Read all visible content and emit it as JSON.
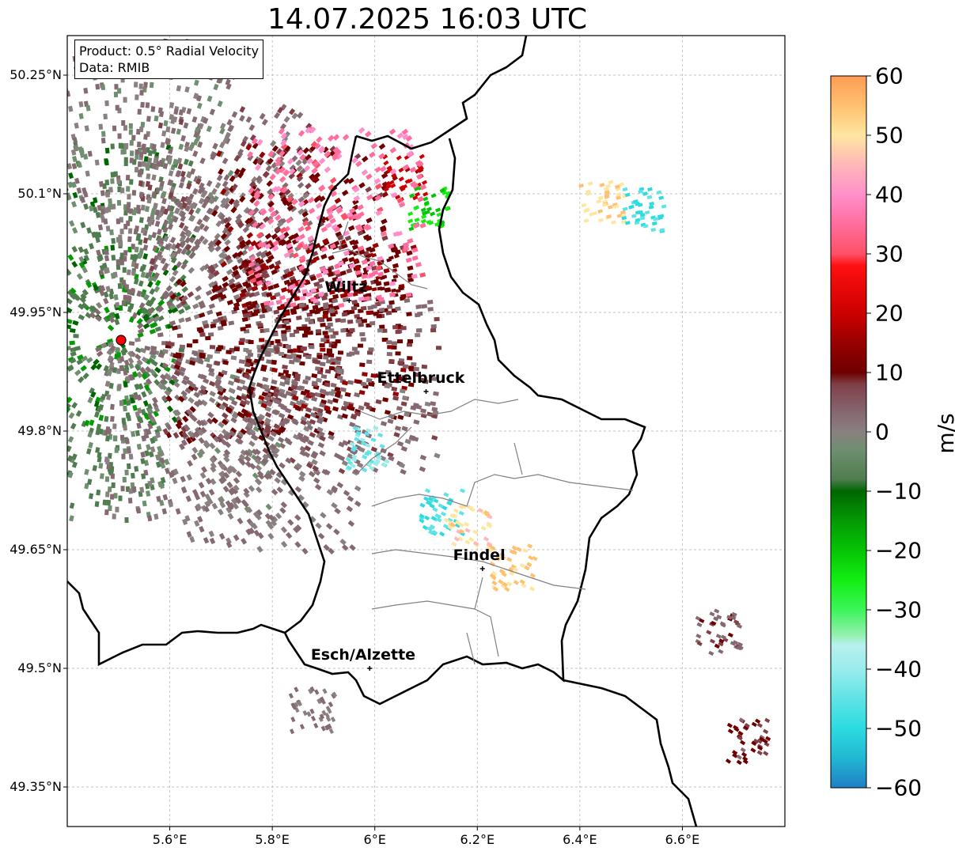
{
  "title": "14.07.2025 16:03 UTC",
  "info": {
    "product": "Product: 0.5° Radial Velocity",
    "data_source": "Data: RMIB"
  },
  "cities": [
    {
      "name": "Wiltz",
      "lon": 5.95,
      "lat": 49.965
    },
    {
      "name": "Ettelbruck",
      "lon": 6.1,
      "lat": 49.85
    },
    {
      "name": "Findel",
      "lon": 6.21,
      "lat": 49.626
    },
    {
      "name": "Esch/Alzette",
      "lon": 5.99,
      "lat": 49.5
    }
  ],
  "radar_site": {
    "lon": 5.505,
    "lat": 49.915,
    "color": "#ff0000"
  },
  "axes": {
    "lat_ticks": [
      "50.25°N",
      "50.1°N",
      "49.95°N",
      "49.8°N",
      "49.65°N",
      "49.5°N",
      "49.35°N"
    ],
    "lat_values": [
      50.25,
      50.1,
      49.95,
      49.8,
      49.65,
      49.5,
      49.35
    ],
    "lon_ticks": [
      "5.6°E",
      "5.8°E",
      "6°E",
      "6.2°E",
      "6.4°E",
      "6.6°E"
    ],
    "lon_values": [
      5.6,
      5.8,
      6.0,
      6.2,
      6.4,
      6.6
    ],
    "lon_range": [
      5.4,
      6.8
    ],
    "lat_range": [
      49.3,
      50.3
    ]
  },
  "colorbar": {
    "unit": "m/s",
    "ticks": [
      "60",
      "50",
      "40",
      "30",
      "20",
      "10",
      "0",
      "−10",
      "−20",
      "−30",
      "−40",
      "−50",
      "−60"
    ],
    "range": [
      -60,
      60
    ],
    "stops": [
      {
        "v": -60,
        "c": "#1f7fc4"
      },
      {
        "v": -55,
        "c": "#22b7d2"
      },
      {
        "v": -50,
        "c": "#2bdbe0"
      },
      {
        "v": -45,
        "c": "#5fe3e6"
      },
      {
        "v": -40,
        "c": "#9aecec"
      },
      {
        "v": -36,
        "c": "#b8f0ef"
      },
      {
        "v": -34,
        "c": "#8ff0a8"
      },
      {
        "v": -30,
        "c": "#3cf55a"
      },
      {
        "v": -25,
        "c": "#12ee12"
      },
      {
        "v": -20,
        "c": "#06c406"
      },
      {
        "v": -15,
        "c": "#039a03"
      },
      {
        "v": -10,
        "c": "#006600"
      },
      {
        "v": -8,
        "c": "#4f7d4f"
      },
      {
        "v": -3,
        "c": "#6f8f70"
      },
      {
        "v": 0,
        "c": "#8a8080"
      },
      {
        "v": 3,
        "c": "#866a72"
      },
      {
        "v": 8,
        "c": "#7f4048"
      },
      {
        "v": 10,
        "c": "#6e0000"
      },
      {
        "v": 15,
        "c": "#990000"
      },
      {
        "v": 20,
        "c": "#cc0000"
      },
      {
        "v": 28,
        "c": "#ff1010"
      },
      {
        "v": 30,
        "c": "#ff5068"
      },
      {
        "v": 35,
        "c": "#ff6e9c"
      },
      {
        "v": 40,
        "c": "#ff8fcb"
      },
      {
        "v": 45,
        "c": "#ffb7b8"
      },
      {
        "v": 50,
        "c": "#ffe6a0"
      },
      {
        "v": 55,
        "c": "#ffc070"
      },
      {
        "v": 60,
        "c": "#ff9c55"
      }
    ]
  },
  "velocity_cells": [
    {
      "lon": 5.42,
      "lat": 49.8,
      "v": -4
    },
    {
      "lon": 5.45,
      "lat": 49.92,
      "v": -9
    },
    {
      "lon": 5.47,
      "lat": 50.05,
      "v": -5
    },
    {
      "lon": 5.55,
      "lat": 50.18,
      "v": 2
    },
    {
      "lon": 5.62,
      "lat": 49.98,
      "v": 4
    },
    {
      "lon": 5.65,
      "lat": 49.8,
      "v": 3
    },
    {
      "lon": 5.7,
      "lat": 50.1,
      "v": 5
    },
    {
      "lon": 5.76,
      "lat": 49.9,
      "v": 11
    },
    {
      "lon": 5.8,
      "lat": 49.76,
      "v": 4
    },
    {
      "lon": 5.85,
      "lat": 50.05,
      "v": 12
    },
    {
      "lon": 5.9,
      "lat": 49.93,
      "v": 13
    },
    {
      "lon": 5.95,
      "lat": 49.86,
      "v": 6
    },
    {
      "lon": 6.0,
      "lat": 50.0,
      "v": 14
    },
    {
      "lon": 6.05,
      "lat": 50.12,
      "v": 22
    },
    {
      "lon": 6.1,
      "lat": 50.08,
      "v": -20
    },
    {
      "lon": 5.92,
      "lat": 50.07,
      "v": 38
    },
    {
      "lon": 5.98,
      "lat": 49.78,
      "v": -40
    },
    {
      "lon": 6.13,
      "lat": 49.7,
      "v": -45
    },
    {
      "lon": 6.18,
      "lat": 49.68,
      "v": 52
    },
    {
      "lon": 6.27,
      "lat": 49.63,
      "v": 56
    },
    {
      "lon": 6.44,
      "lat": 50.09,
      "v": 55
    },
    {
      "lon": 6.52,
      "lat": 50.08,
      "v": -45
    },
    {
      "lon": 6.67,
      "lat": 49.55,
      "v": 8
    },
    {
      "lon": 6.73,
      "lat": 49.41,
      "v": 11
    },
    {
      "lon": 5.88,
      "lat": 49.45,
      "v": 4
    }
  ]
}
